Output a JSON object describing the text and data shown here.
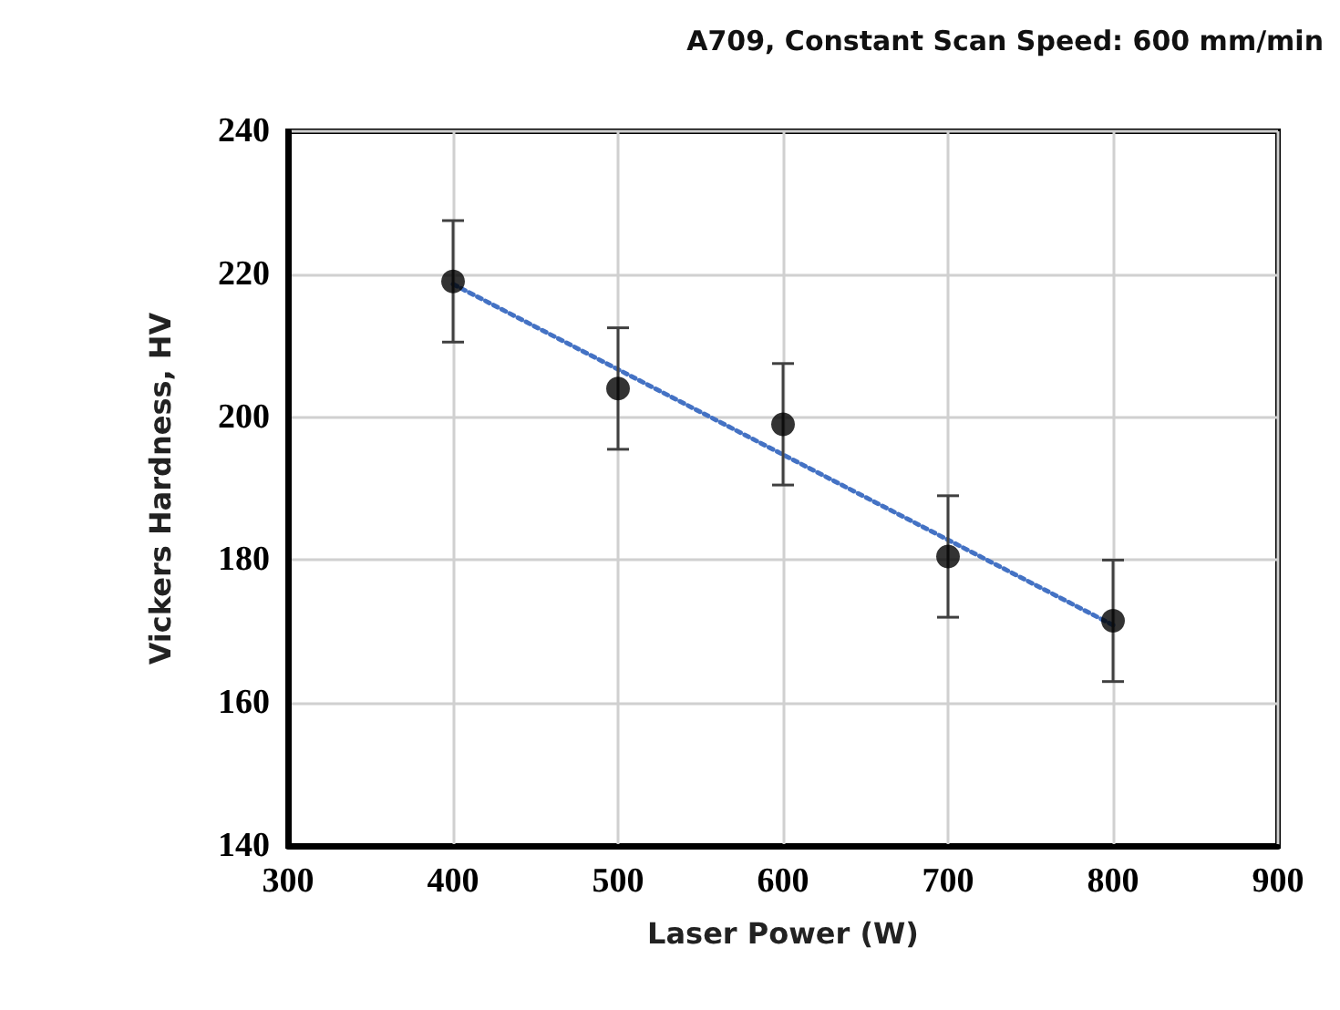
{
  "chart_data": {
    "type": "scatter",
    "title": "A709, Constant Scan Speed: 600 mm/min",
    "xlabel": "Laser Power (W)",
    "ylabel": "Vickers Hardness, HV",
    "series": [
      {
        "x": [
          400,
          500,
          600,
          700,
          800
        ],
        "values": [
          219,
          204,
          199,
          180.5,
          171.5
        ],
        "errors": [
          8.5,
          8.5,
          8.5,
          8.5,
          8.5
        ],
        "color": "#000000",
        "marker": "circle"
      },
      {
        "type": "line",
        "x": [
          400,
          800
        ],
        "values": [
          218.6,
          170.9
        ],
        "color": "#4472c4",
        "marker": "none",
        "line_style": "dotted"
      }
    ],
    "xlim": [
      300,
      900
    ],
    "xticks": [
      300,
      400,
      500,
      600,
      700,
      800,
      900
    ],
    "ylim": [
      140,
      240
    ],
    "yticks": [
      140,
      160,
      180,
      200,
      220,
      240
    ],
    "grid": true
  }
}
